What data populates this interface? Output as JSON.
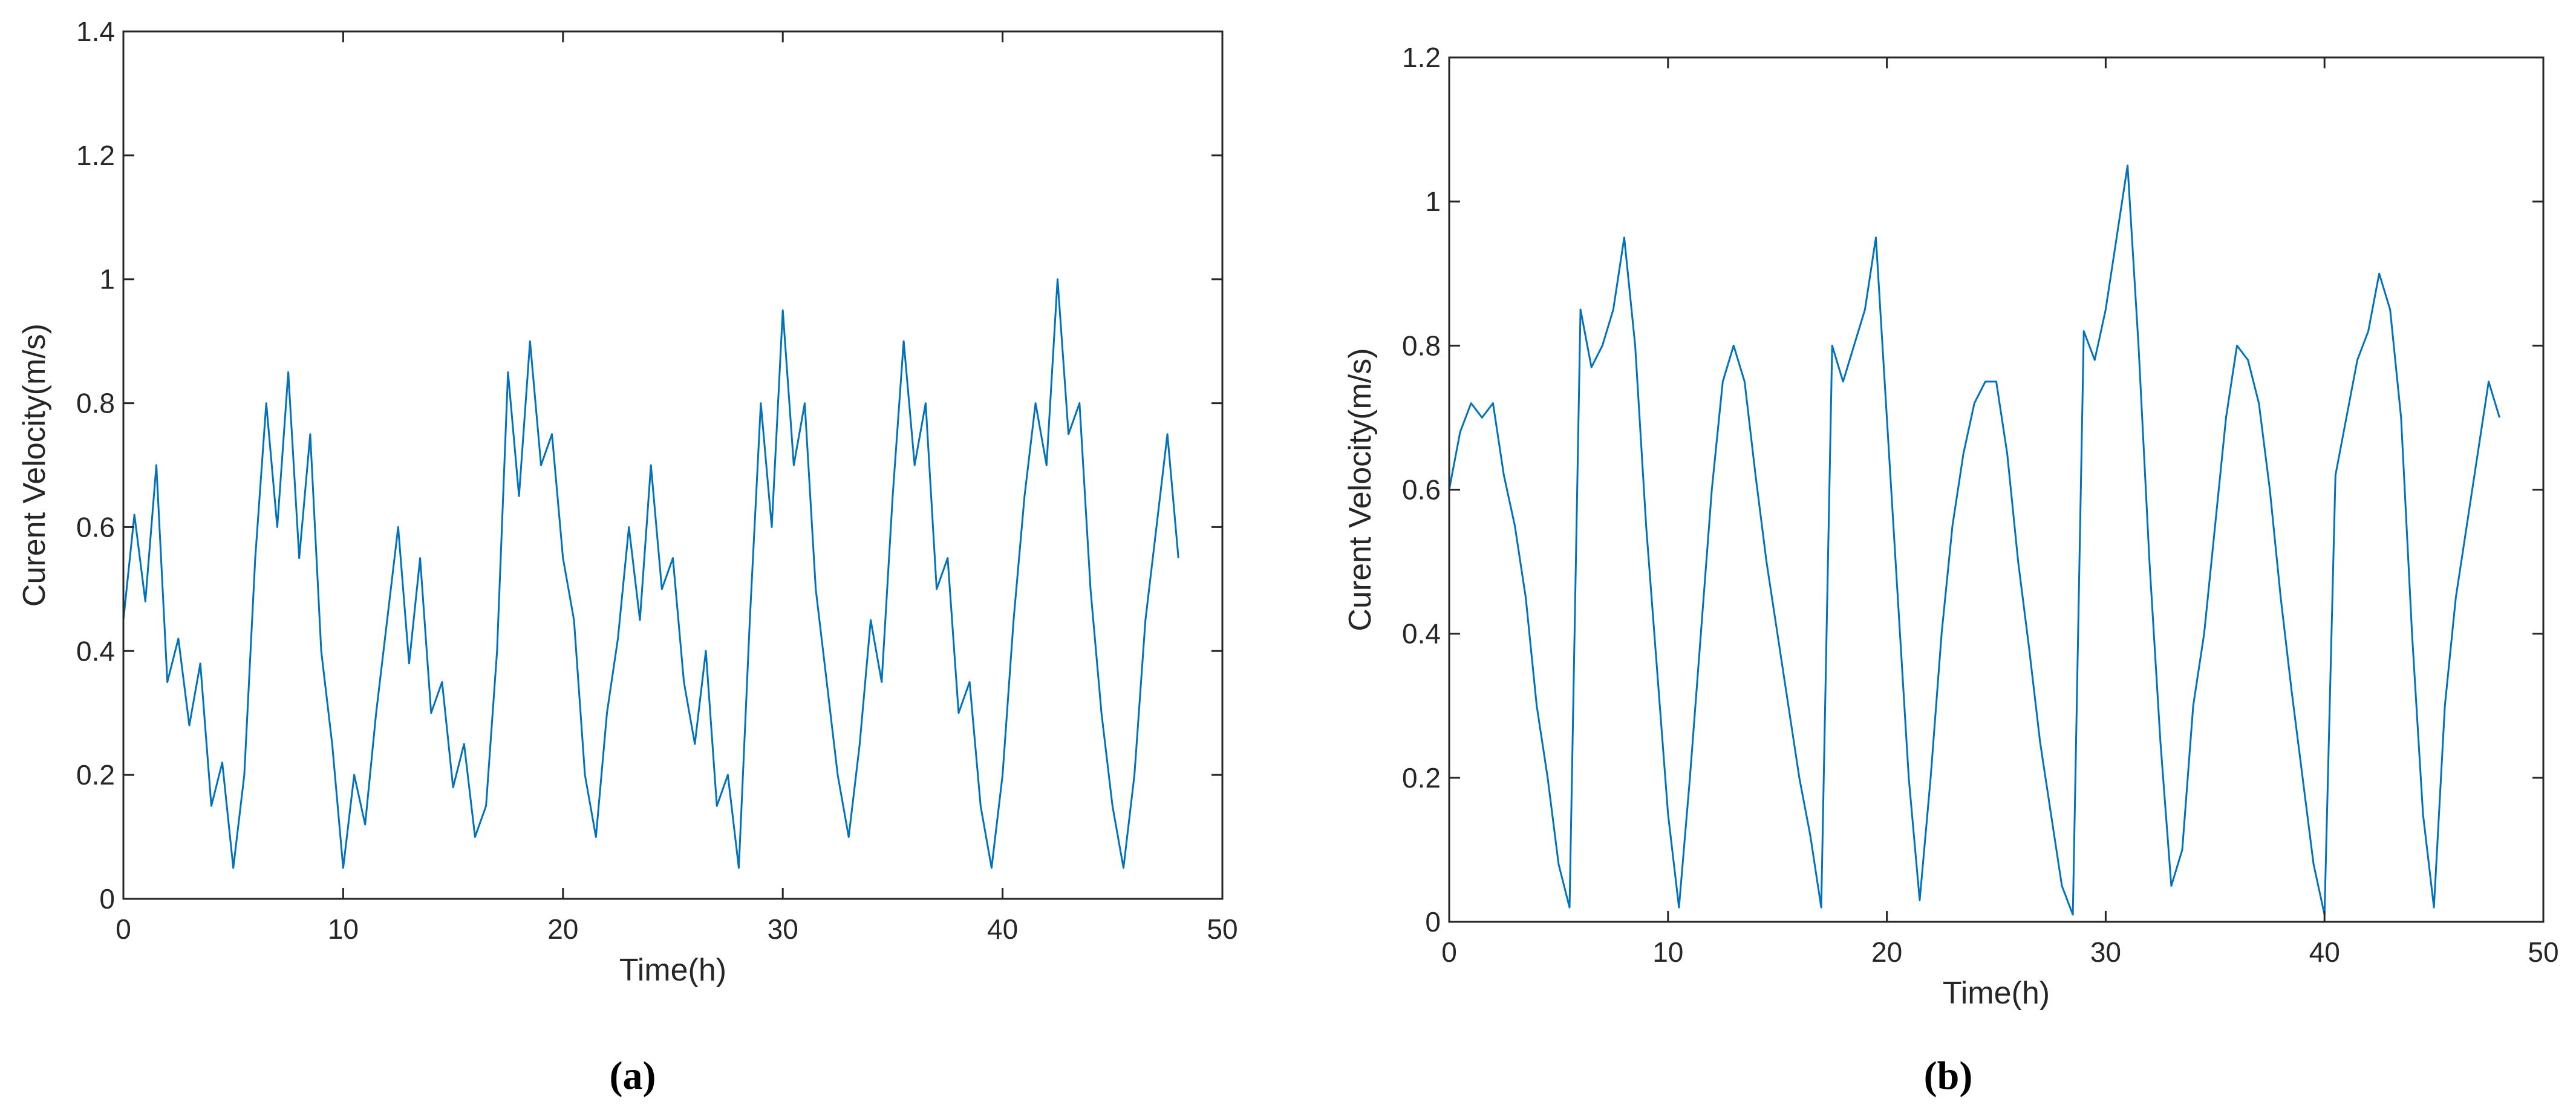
{
  "chart_data": [
    {
      "type": "line",
      "x_label": "Time(h)",
      "y_label": "Curent Velocity(m/s)",
      "caption": "(a)",
      "color": "#0072BD",
      "xlim": [
        0,
        50
      ],
      "ylim": [
        0,
        1.4
      ],
      "xticks": [
        0,
        10,
        20,
        30,
        40,
        50
      ],
      "yticks": [
        0,
        0.2,
        0.4,
        0.6,
        0.8,
        1,
        1.2,
        1.4
      ],
      "x": [
        0,
        0.5,
        1,
        1.5,
        2,
        2.5,
        3,
        3.5,
        4,
        4.5,
        5,
        5.5,
        6,
        6.5,
        7,
        7.5,
        8,
        8.5,
        9,
        9.5,
        10,
        10.5,
        11,
        11.5,
        12,
        12.5,
        13,
        13.5,
        14,
        14.5,
        15,
        15.5,
        16,
        16.5,
        17,
        17.5,
        18,
        18.5,
        19,
        19.5,
        20,
        20.5,
        21,
        21.5,
        22,
        22.5,
        23,
        23.5,
        24,
        24.5,
        25,
        25.5,
        26,
        26.5,
        27,
        27.5,
        28,
        28.5,
        29,
        29.5,
        30,
        30.5,
        31,
        31.5,
        32,
        32.5,
        33,
        33.5,
        34,
        34.5,
        35,
        35.5,
        36,
        36.5,
        37,
        37.5,
        38,
        38.5,
        39,
        39.5,
        40,
        40.5,
        41,
        41.5,
        42,
        42.5,
        43,
        43.5,
        44,
        44.5,
        45,
        45.5,
        46,
        46.5,
        47,
        47.5,
        48
      ],
      "values": [
        0.45,
        0.62,
        0.48,
        0.7,
        0.35,
        0.42,
        0.28,
        0.38,
        0.15,
        0.22,
        0.05,
        0.2,
        0.55,
        0.8,
        0.6,
        0.85,
        0.55,
        0.75,
        0.4,
        0.25,
        0.05,
        0.2,
        0.12,
        0.3,
        0.45,
        0.6,
        0.38,
        0.55,
        0.3,
        0.35,
        0.18,
        0.25,
        0.1,
        0.15,
        0.4,
        0.85,
        0.65,
        0.9,
        0.7,
        0.75,
        0.55,
        0.45,
        0.2,
        0.1,
        0.3,
        0.42,
        0.6,
        0.45,
        0.7,
        0.5,
        0.55,
        0.35,
        0.25,
        0.4,
        0.15,
        0.2,
        0.05,
        0.45,
        0.8,
        0.6,
        0.95,
        0.7,
        0.8,
        0.5,
        0.35,
        0.2,
        0.1,
        0.25,
        0.45,
        0.35,
        0.65,
        0.9,
        0.7,
        0.8,
        0.5,
        0.55,
        0.3,
        0.35,
        0.15,
        0.05,
        0.2,
        0.45,
        0.65,
        0.8,
        0.7,
        1.0,
        0.75,
        0.8,
        0.5,
        0.3,
        0.15,
        0.05,
        0.2,
        0.45,
        0.6,
        0.75,
        0.55
      ]
    },
    {
      "type": "line",
      "x_label": "Time(h)",
      "y_label": "Curent Velocity(m/s)",
      "caption": "(b)",
      "color": "#0072BD",
      "xlim": [
        0,
        50
      ],
      "ylim": [
        0,
        1.2
      ],
      "xticks": [
        0,
        10,
        20,
        30,
        40,
        50
      ],
      "yticks": [
        0,
        0.2,
        0.4,
        0.6,
        0.8,
        1,
        1.2
      ],
      "x": [
        0,
        0.5,
        1,
        1.5,
        2,
        2.5,
        3,
        3.5,
        4,
        4.5,
        5,
        5.5,
        6,
        6.5,
        7,
        7.5,
        8,
        8.5,
        9,
        9.5,
        10,
        10.5,
        11,
        11.5,
        12,
        12.5,
        13,
        13.5,
        14,
        14.5,
        15,
        15.5,
        16,
        16.5,
        17,
        17.5,
        18,
        18.5,
        19,
        19.5,
        20,
        20.5,
        21,
        21.5,
        22,
        22.5,
        23,
        23.5,
        24,
        24.5,
        25,
        25.5,
        26,
        26.5,
        27,
        27.5,
        28,
        28.5,
        29,
        29.5,
        30,
        30.5,
        31,
        31.5,
        32,
        32.5,
        33,
        33.5,
        34,
        34.5,
        35,
        35.5,
        36,
        36.5,
        37,
        37.5,
        38,
        38.5,
        39,
        39.5,
        40,
        40.5,
        41,
        41.5,
        42,
        42.5,
        43,
        43.5,
        44,
        44.5,
        45,
        45.5,
        46,
        46.5,
        47,
        47.5,
        48
      ],
      "values": [
        0.6,
        0.68,
        0.72,
        0.7,
        0.72,
        0.62,
        0.55,
        0.45,
        0.3,
        0.2,
        0.08,
        0.02,
        0.85,
        0.77,
        0.8,
        0.85,
        0.95,
        0.8,
        0.55,
        0.35,
        0.15,
        0.02,
        0.2,
        0.4,
        0.6,
        0.75,
        0.8,
        0.75,
        0.62,
        0.5,
        0.4,
        0.3,
        0.2,
        0.12,
        0.02,
        0.8,
        0.75,
        0.8,
        0.85,
        0.95,
        0.7,
        0.45,
        0.2,
        0.03,
        0.2,
        0.4,
        0.55,
        0.65,
        0.72,
        0.75,
        0.75,
        0.65,
        0.5,
        0.38,
        0.25,
        0.15,
        0.05,
        0.01,
        0.82,
        0.78,
        0.85,
        0.95,
        1.05,
        0.8,
        0.5,
        0.25,
        0.05,
        0.1,
        0.3,
        0.4,
        0.55,
        0.7,
        0.8,
        0.78,
        0.72,
        0.6,
        0.45,
        0.32,
        0.2,
        0.08,
        0.01,
        0.62,
        0.7,
        0.78,
        0.82,
        0.9,
        0.85,
        0.7,
        0.4,
        0.15,
        0.02,
        0.3,
        0.45,
        0.55,
        0.65,
        0.75,
        0.7
      ]
    }
  ]
}
